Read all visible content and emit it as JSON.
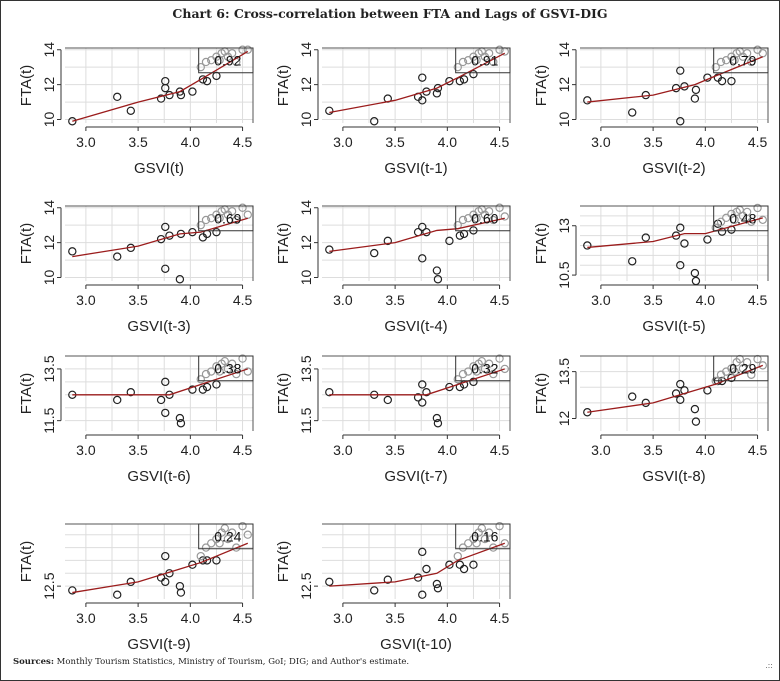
{
  "chart_data": {
    "type": "scatter",
    "title": "Chart 6: Cross-correlation between FTA and Lags of GSVI-DIG",
    "xlim": [
      2.8,
      4.6
    ],
    "xticks": [
      3.0,
      3.5,
      4.0,
      4.5
    ],
    "ylabel": "FTA(t)",
    "x": [
      2.87,
      3.3,
      3.43,
      3.72,
      3.76,
      3.76,
      3.8,
      3.9,
      3.91,
      4.02,
      4.12,
      4.16,
      4.25,
      4.1,
      4.15,
      4.2,
      4.25,
      4.28,
      4.3,
      4.33,
      4.36,
      4.4,
      4.44,
      4.5,
      4.55
    ],
    "panels": [
      {
        "xlabel": "GSVI(t)",
        "r": "0.92",
        "ylim": [
          9.8,
          14.1
        ],
        "yticks": [
          10,
          12,
          14
        ],
        "grid": [
          11,
          13
        ],
        "y": [
          9.9,
          11.3,
          10.5,
          11.2,
          12.2,
          11.8,
          11.4,
          11.6,
          11.4,
          11.6,
          12.3,
          12.2,
          12.5,
          13.0,
          13.3,
          13.4,
          13.6,
          13.4,
          13.8,
          13.9,
          13.6,
          13.8,
          13.3,
          14.0,
          14.0
        ],
        "trend": [
          [
            2.87,
            9.9
          ],
          [
            3.5,
            11.0
          ],
          [
            3.9,
            11.6
          ],
          [
            4.1,
            12.3
          ],
          [
            4.55,
            13.9
          ]
        ]
      },
      {
        "xlabel": "GSVI(t-1)",
        "r": "0.91",
        "ylim": [
          9.8,
          14.1
        ],
        "yticks": [
          10,
          12,
          14
        ],
        "grid": [
          11,
          13
        ],
        "y": [
          10.5,
          9.9,
          11.2,
          11.3,
          12.4,
          11.1,
          11.6,
          11.5,
          11.8,
          12.2,
          12.2,
          12.3,
          12.6,
          13.0,
          13.3,
          13.4,
          13.6,
          13.4,
          13.8,
          13.9,
          13.6,
          13.8,
          13.3,
          14.0,
          13.9
        ],
        "trend": [
          [
            2.87,
            10.4
          ],
          [
            3.5,
            11.1
          ],
          [
            3.9,
            11.8
          ],
          [
            4.1,
            12.4
          ],
          [
            4.55,
            13.8
          ]
        ]
      },
      {
        "xlabel": "GSVI(t-2)",
        "r": "0.79",
        "ylim": [
          9.8,
          14.1
        ],
        "yticks": [
          10,
          12,
          14
        ],
        "grid": [
          11,
          13
        ],
        "y": [
          11.1,
          10.4,
          11.4,
          11.8,
          12.8,
          9.9,
          11.9,
          11.2,
          11.7,
          12.4,
          12.4,
          12.2,
          12.2,
          13.0,
          13.3,
          13.4,
          13.6,
          13.4,
          13.8,
          13.9,
          13.6,
          13.8,
          13.3,
          14.0,
          13.8
        ],
        "trend": [
          [
            2.87,
            11.0
          ],
          [
            3.5,
            11.4
          ],
          [
            3.9,
            12.0
          ],
          [
            4.1,
            12.5
          ],
          [
            4.55,
            13.6
          ]
        ]
      },
      {
        "xlabel": "GSVI(t-3)",
        "r": "0.69",
        "ylim": [
          9.8,
          14.1
        ],
        "yticks": [
          10,
          12,
          14
        ],
        "grid": [
          11,
          13
        ],
        "y": [
          11.5,
          11.2,
          11.7,
          12.2,
          12.9,
          10.5,
          12.4,
          9.9,
          12.5,
          12.6,
          12.3,
          12.5,
          12.6,
          13.0,
          13.3,
          13.4,
          13.6,
          13.4,
          13.8,
          13.9,
          13.6,
          13.8,
          13.3,
          14.0,
          13.6
        ],
        "trend": [
          [
            2.87,
            11.2
          ],
          [
            3.5,
            11.8
          ],
          [
            3.9,
            12.5
          ],
          [
            4.1,
            12.6
          ],
          [
            4.55,
            13.4
          ]
        ]
      },
      {
        "xlabel": "GSVI(t-4)",
        "r": "0.60",
        "ylim": [
          9.8,
          14.1
        ],
        "yticks": [
          10,
          12,
          14
        ],
        "grid": [
          11,
          13
        ],
        "y": [
          11.6,
          11.4,
          12.1,
          12.6,
          12.9,
          11.1,
          12.6,
          10.4,
          9.9,
          12.1,
          12.4,
          12.5,
          12.7,
          13.0,
          13.3,
          13.4,
          13.6,
          13.4,
          13.8,
          13.9,
          13.6,
          13.8,
          13.3,
          14.0,
          13.5
        ],
        "trend": [
          [
            2.87,
            11.5
          ],
          [
            3.5,
            12.0
          ],
          [
            3.9,
            12.7
          ],
          [
            4.1,
            12.8
          ],
          [
            4.55,
            13.4
          ]
        ]
      },
      {
        "xlabel": "GSVI(t-5)",
        "r": "0.48",
        "ylim": [
          10.2,
          14.0
        ],
        "yticks": [
          10.5,
          13.0
        ],
        "grid": [
          11.0,
          11.5,
          12.0,
          12.5,
          13.5
        ],
        "y": [
          12.0,
          11.2,
          12.4,
          12.5,
          12.9,
          11.0,
          12.1,
          10.6,
          10.2,
          12.3,
          13.1,
          12.7,
          12.8,
          12.9,
          13.2,
          13.4,
          13.6,
          13.3,
          13.7,
          13.8,
          13.5,
          13.7,
          13.2,
          13.9,
          13.3
        ],
        "trend": [
          [
            2.87,
            11.9
          ],
          [
            3.5,
            12.2
          ],
          [
            3.8,
            12.6
          ],
          [
            4.0,
            12.6
          ],
          [
            4.55,
            13.4
          ]
        ]
      },
      {
        "xlabel": "GSVI(t-6)",
        "r": "0.38",
        "ylim": [
          11.1,
          14.0
        ],
        "yticks": [
          11.5,
          13.5
        ],
        "grid": [
          12.0,
          12.5,
          13.0
        ],
        "y": [
          12.5,
          12.3,
          12.6,
          12.3,
          13.0,
          11.8,
          12.5,
          11.6,
          11.4,
          12.7,
          12.7,
          12.8,
          12.9,
          13.1,
          13.3,
          13.4,
          13.6,
          13.4,
          13.7,
          13.8,
          13.5,
          13.7,
          13.3,
          13.9,
          13.4
        ],
        "trend": [
          [
            2.87,
            12.5
          ],
          [
            3.5,
            12.5
          ],
          [
            3.8,
            12.5
          ],
          [
            4.1,
            12.9
          ],
          [
            4.55,
            13.5
          ]
        ]
      },
      {
        "xlabel": "GSVI(t-7)",
        "r": "0.32",
        "ylim": [
          11.1,
          14.0
        ],
        "yticks": [
          11.5,
          13.5
        ],
        "grid": [
          12.0,
          12.5,
          13.0
        ],
        "y": [
          12.6,
          12.5,
          12.3,
          12.4,
          12.9,
          12.2,
          12.6,
          11.6,
          11.4,
          12.8,
          12.8,
          12.9,
          13.0,
          13.1,
          13.3,
          13.4,
          13.6,
          13.4,
          13.7,
          13.8,
          13.5,
          13.7,
          13.3,
          13.9,
          13.5
        ],
        "trend": [
          [
            2.87,
            12.5
          ],
          [
            3.5,
            12.5
          ],
          [
            3.8,
            12.5
          ],
          [
            4.1,
            12.9
          ],
          [
            4.55,
            13.5
          ]
        ]
      },
      {
        "xlabel": "GSVI(t-8)",
        "r": "0.29",
        "ylim": [
          11.6,
          14.0
        ],
        "yticks": [
          12.0,
          13.5
        ],
        "grid": [
          12.5,
          13.0
        ],
        "y": [
          12.2,
          12.7,
          12.5,
          12.8,
          13.1,
          12.6,
          12.9,
          12.3,
          11.9,
          12.9,
          13.2,
          13.2,
          13.3,
          13.2,
          13.4,
          13.5,
          13.6,
          13.5,
          13.8,
          13.9,
          13.6,
          13.8,
          13.4,
          13.9,
          13.7
        ],
        "trend": [
          [
            2.87,
            12.2
          ],
          [
            3.5,
            12.5
          ],
          [
            3.9,
            12.9
          ],
          [
            4.1,
            13.1
          ],
          [
            4.55,
            13.7
          ]
        ]
      },
      {
        "xlabel": "GSVI(t-9)",
        "r": "0.24",
        "ylim": [
          12.2,
          13.95
        ],
        "yticks": [
          12.5
        ],
        "grid": [
          12.8,
          13.1,
          13.4,
          13.7
        ],
        "y": [
          12.4,
          12.3,
          12.6,
          12.7,
          13.2,
          12.6,
          12.8,
          12.5,
          12.35,
          13.0,
          13.1,
          13.1,
          13.1,
          13.2,
          13.4,
          13.5,
          13.6,
          13.5,
          13.75,
          13.85,
          13.6,
          13.75,
          13.4,
          13.9,
          13.7
        ],
        "trend": [
          [
            2.87,
            12.35
          ],
          [
            3.5,
            12.6
          ],
          [
            3.9,
            12.9
          ],
          [
            4.1,
            13.05
          ],
          [
            4.55,
            13.5
          ]
        ]
      },
      {
        "xlabel": "GSVI(t-10)",
        "r": "0.16",
        "ylim": [
          12.2,
          13.95
        ],
        "yticks": [
          12.5
        ],
        "grid": [
          12.8,
          13.1,
          13.4,
          13.7
        ],
        "y": [
          12.6,
          12.4,
          12.65,
          12.7,
          13.3,
          12.3,
          12.9,
          12.55,
          12.45,
          13.0,
          13.0,
          12.9,
          13.0,
          13.2,
          13.4,
          13.5,
          13.6,
          13.5,
          13.75,
          13.85,
          13.6,
          13.75,
          13.4,
          13.9,
          13.5
        ],
        "trend": [
          [
            2.87,
            12.5
          ],
          [
            3.5,
            12.6
          ],
          [
            3.9,
            12.8
          ],
          [
            4.1,
            13.1
          ],
          [
            4.55,
            13.5
          ]
        ]
      }
    ],
    "colors": {
      "trend": "#9b1c1c",
      "points": "#222222",
      "cluster": "#999999",
      "grid": "#dddddd"
    }
  },
  "sources_label": "Sources:",
  "sources_text": " Monthly Tourism Statistics, Ministry of Tourism, GoI; DIG; and Author's estimate."
}
